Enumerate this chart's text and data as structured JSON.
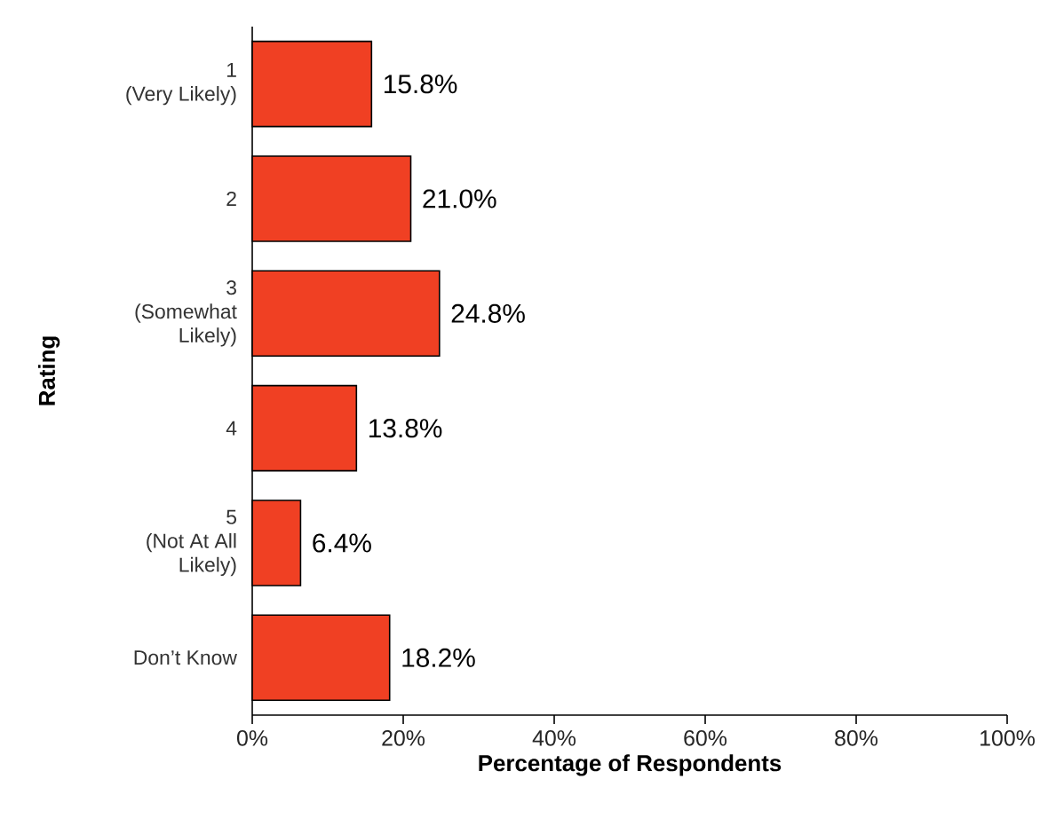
{
  "chart_data": {
    "type": "bar",
    "orientation": "horizontal",
    "xlabel": "Percentage of Respondents",
    "ylabel": "Rating",
    "categories": [
      "1\n(Very Likely)",
      "2",
      "3\n(Somewhat\nLikely)",
      "4",
      "5\n(Not At All\nLikely)",
      "Don’t Know"
    ],
    "values": [
      15.8,
      21.0,
      24.8,
      13.8,
      6.4,
      18.2
    ],
    "value_labels": [
      "15.8%",
      "21.0%",
      "24.8%",
      "13.8%",
      "6.4%",
      "18.2%"
    ],
    "color": "#f04023",
    "xlim": [
      0,
      100
    ],
    "xticks": [
      {
        "value": 0,
        "label": "0%"
      },
      {
        "value": 20,
        "label": "20%"
      },
      {
        "value": 40,
        "label": "40%"
      },
      {
        "value": 60,
        "label": "60%"
      },
      {
        "value": 80,
        "label": "80%"
      },
      {
        "value": 100,
        "label": "100%"
      }
    ],
    "grid": false
  }
}
